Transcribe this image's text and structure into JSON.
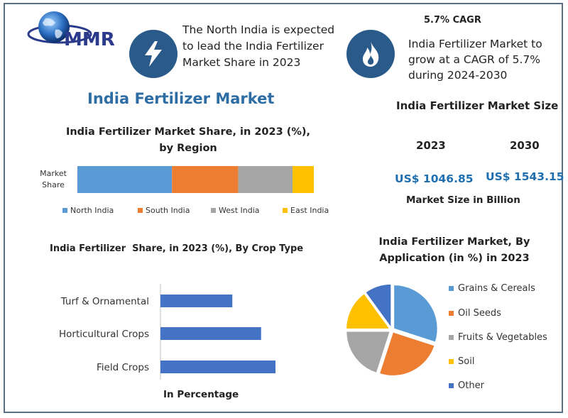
{
  "logo": {
    "text": "MMR"
  },
  "callouts": {
    "north_india": "The North India is expected to lead the India Fertilizer Market Share in 2023",
    "cagr_title": "5.7% CAGR",
    "cagr_text": "India Fertilizer Market to grow at a CAGR of 5.7% during 2024-2030"
  },
  "main_title": "India Fertilizer Market",
  "market_size": {
    "title": "India Fertilizer Market Size",
    "years": [
      "2023",
      "2030"
    ],
    "values": [
      "US$ 1046.85",
      "US$ 1543.15"
    ],
    "footer": "Market Size in Billion"
  },
  "colors": {
    "blue": "#5b9bd5",
    "orange": "#ed7d31",
    "gray": "#a5a5a5",
    "yellow": "#ffc000",
    "dark_blue": "#4472c4",
    "title_blue": "#2e6da4",
    "value_blue": "#1f6fb0",
    "icon_bg": "#2a5a8a"
  },
  "chart_data": [
    {
      "type": "bar",
      "title": "India Fertilizer Market Share, in 2023 (%), by Region",
      "orientation": "horizontal-stacked",
      "categories": [
        "Market Share"
      ],
      "series": [
        {
          "name": "North India",
          "values": [
            40
          ]
        },
        {
          "name": "South India",
          "values": [
            28
          ]
        },
        {
          "name": "West India",
          "values": [
            23
          ]
        },
        {
          "name": "East India",
          "values": [
            9
          ]
        }
      ],
      "legend": "bottom"
    },
    {
      "type": "bar",
      "title": "India Fertilizer  Share, in 2023 (%), By Crop Type",
      "orientation": "horizontal",
      "categories": [
        "Turf & Ornamental",
        "Horticultural Crops",
        "Field Crops"
      ],
      "values": [
        25,
        35,
        40
      ],
      "xlabel": "In Percentage"
    },
    {
      "type": "pie",
      "title": "India Fertilizer Market, By Application (in %) in 2023",
      "categories": [
        "Grains & Cereals",
        "Oil Seeds",
        "Fruits & Vegetables",
        "Soil",
        "Other"
      ],
      "values": [
        30,
        25,
        20,
        15,
        10
      ],
      "legend": "right"
    }
  ]
}
